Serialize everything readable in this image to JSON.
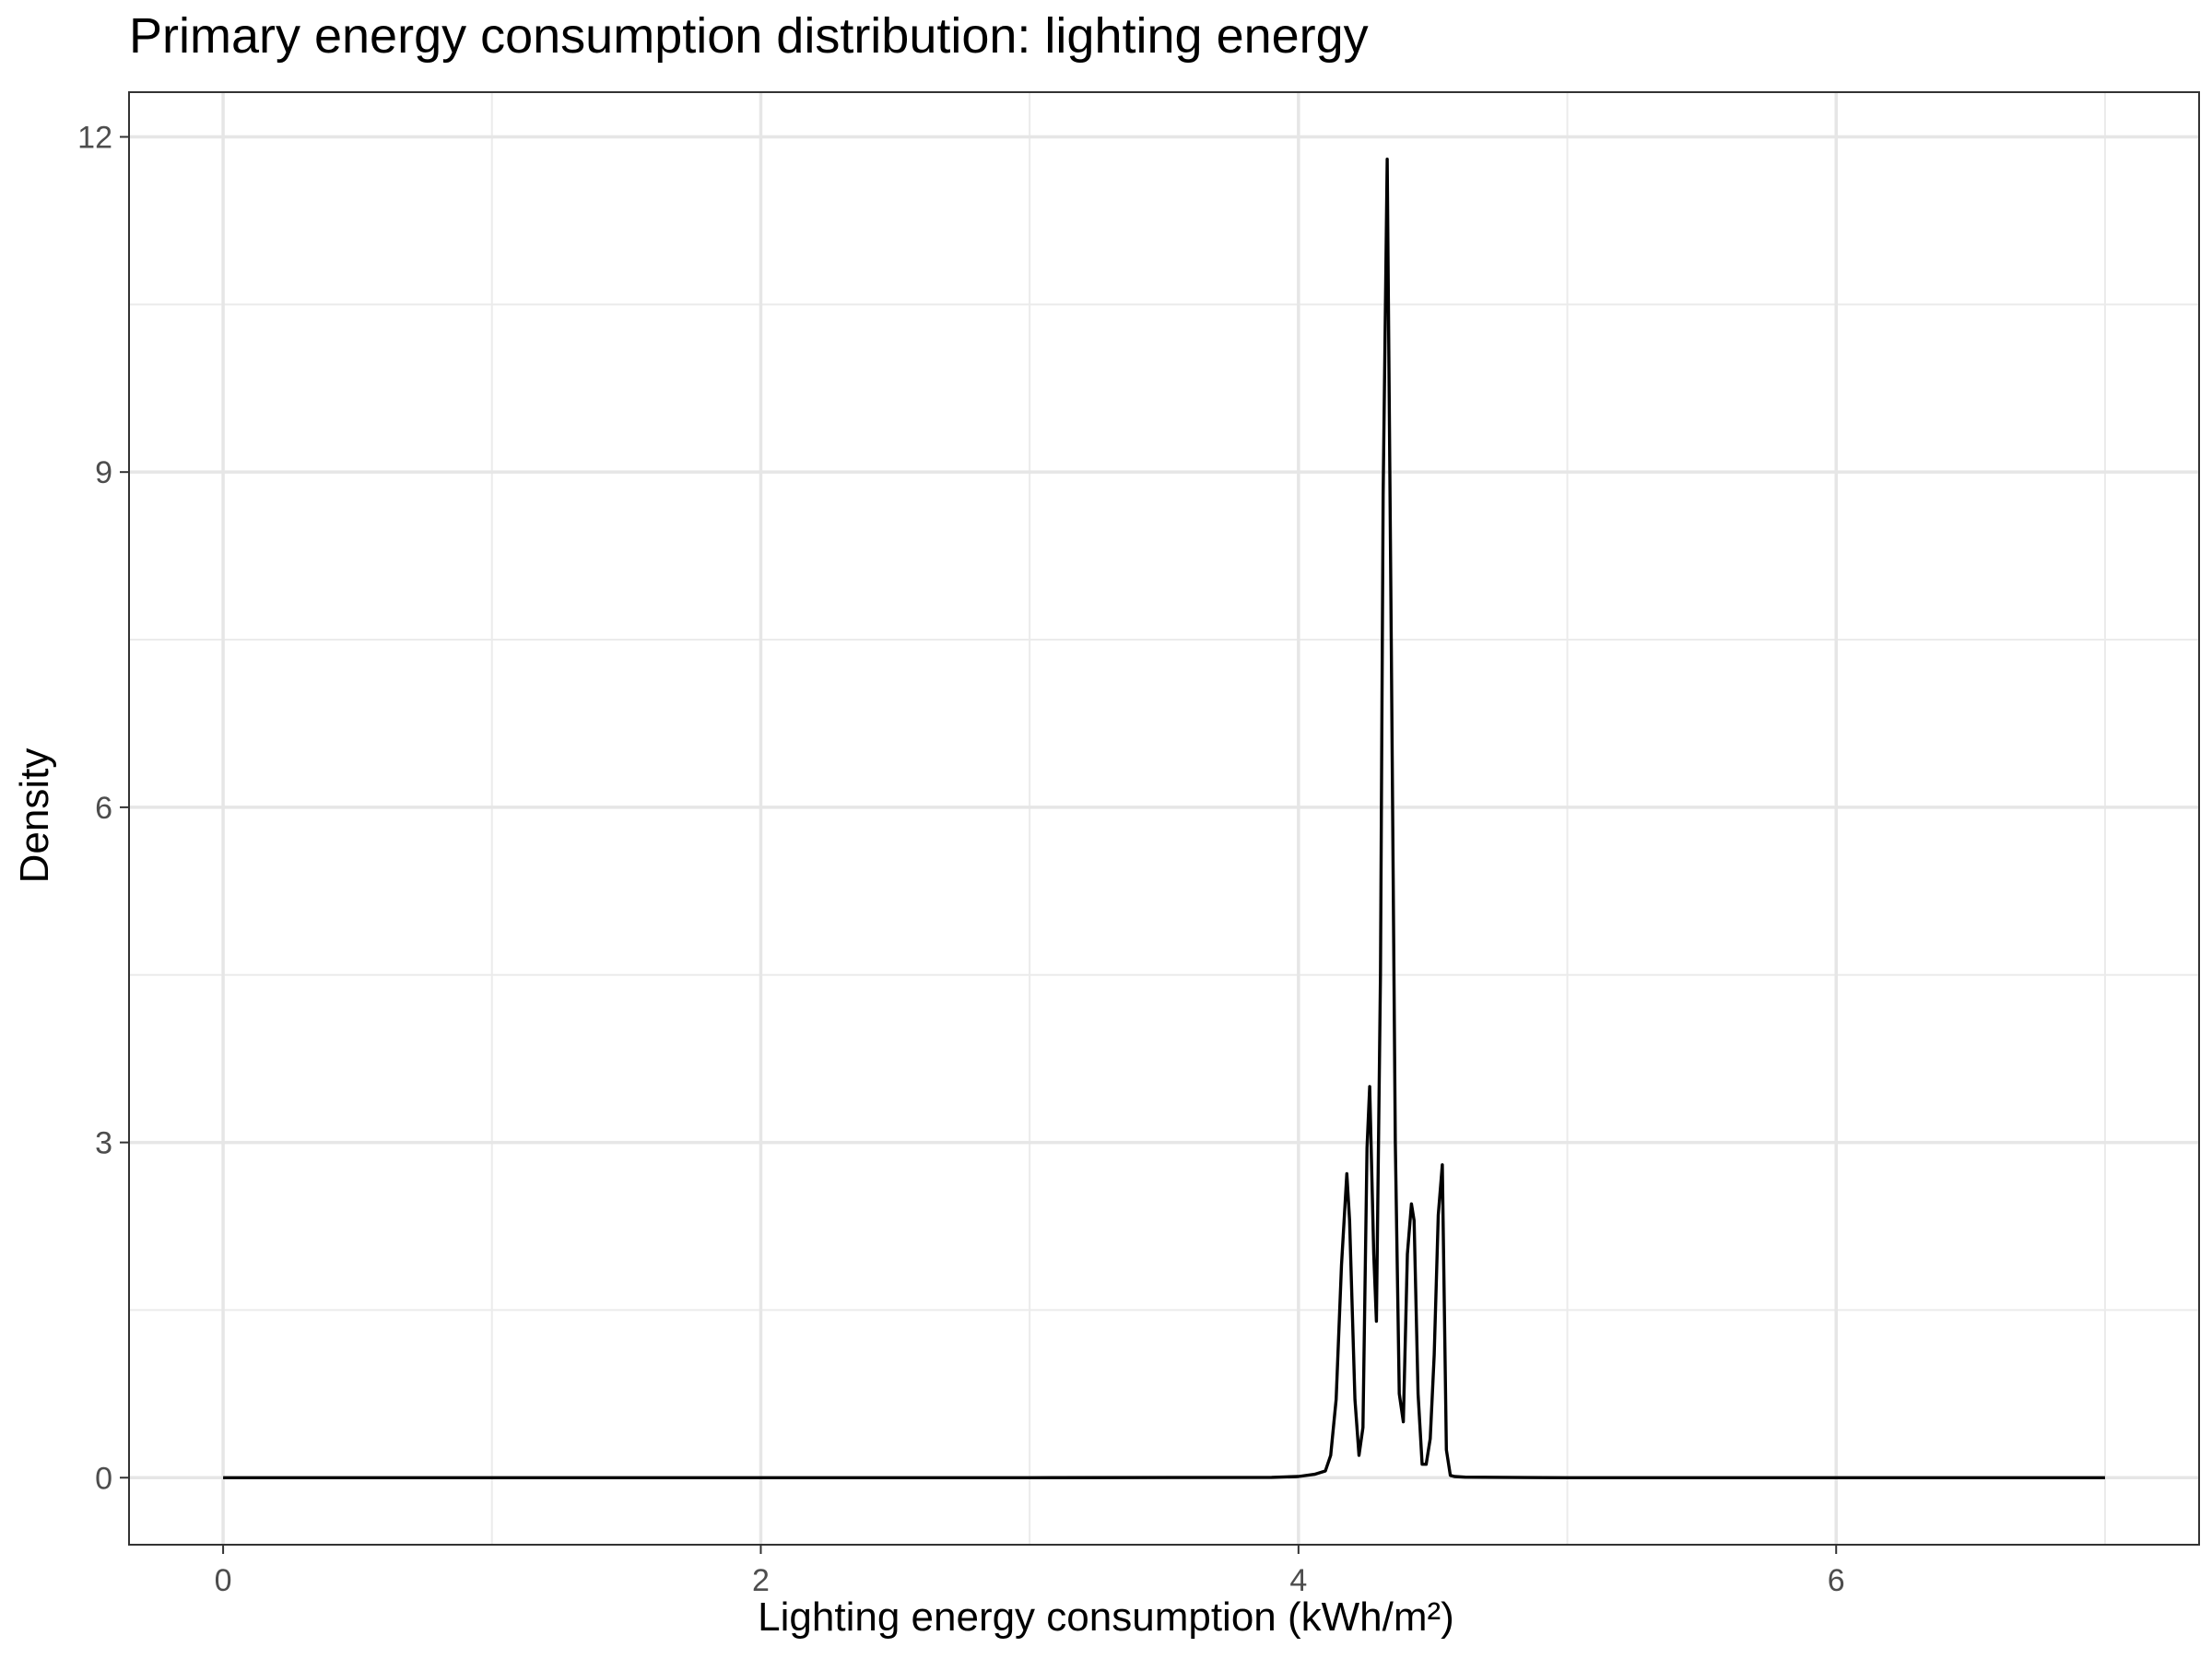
{
  "chart_data": {
    "type": "line",
    "title": "Primary energy consumption distribution: lighting energy",
    "xlabel": "Lighting energy consumption (kWh/m²)",
    "ylabel": "Density",
    "xlim": [
      -0.35,
      7.35
    ],
    "ylim": [
      -0.6,
      12.4
    ],
    "x_ticks": [
      0,
      2,
      4,
      6
    ],
    "y_ticks": [
      0,
      3,
      6,
      9,
      12
    ],
    "grid": true,
    "series": [
      {
        "color": "#000000",
        "x": [
          0.0,
          3.0,
          3.9,
          4.0,
          4.06,
          4.1,
          4.12,
          4.14,
          4.16,
          4.18,
          4.19,
          4.21,
          4.225,
          4.24,
          4.255,
          4.265,
          4.28,
          4.29,
          4.305,
          4.315,
          4.33,
          4.345,
          4.36,
          4.375,
          4.39,
          4.405,
          4.42,
          4.43,
          4.445,
          4.46,
          4.475,
          4.49,
          4.505,
          4.52,
          4.535,
          4.55,
          4.565,
          4.58,
          4.62,
          5.0,
          7.0
        ],
        "y": [
          0.0,
          0.0,
          0.003,
          0.01,
          0.03,
          0.06,
          0.2,
          0.7,
          1.9,
          2.72,
          2.3,
          0.7,
          0.2,
          0.45,
          2.95,
          3.5,
          2.0,
          1.4,
          4.5,
          8.8,
          11.8,
          7.5,
          3.0,
          0.75,
          0.5,
          2.0,
          2.45,
          2.3,
          0.75,
          0.12,
          0.12,
          0.35,
          1.1,
          2.35,
          2.8,
          0.25,
          0.02,
          0.01,
          0.005,
          0.0,
          0.0
        ]
      }
    ]
  }
}
